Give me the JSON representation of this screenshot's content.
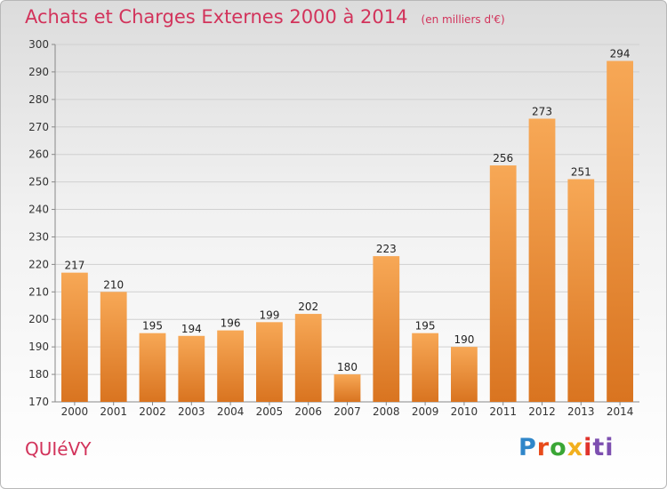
{
  "header": {
    "title": "Achats et Charges Externes 2000 à 2014",
    "subtitle": "(en milliers d'€)"
  },
  "footer": {
    "commune": "QUIéVY",
    "logo_parts": [
      "P",
      "r",
      "o",
      "x",
      "i",
      "ti"
    ]
  },
  "colors": {
    "title": "#d2335b",
    "bar_light": "#f7a856",
    "bar_dark": "#d97420",
    "grid": "#d0d0d0"
  },
  "chart_data": {
    "type": "bar",
    "title": "Achats et Charges Externes 2000 à 2014",
    "subtitle": "(en milliers d'€)",
    "categories": [
      "2000",
      "2001",
      "2002",
      "2003",
      "2004",
      "2005",
      "2006",
      "2007",
      "2008",
      "2009",
      "2010",
      "2011",
      "2012",
      "2013",
      "2014"
    ],
    "values": [
      217,
      210,
      195,
      194,
      196,
      199,
      202,
      180,
      223,
      195,
      190,
      256,
      273,
      251,
      294
    ],
    "ylim": [
      170,
      300
    ],
    "yticks": [
      170,
      180,
      190,
      200,
      210,
      220,
      230,
      240,
      250,
      260,
      270,
      280,
      290,
      300
    ],
    "grid": true,
    "data_labels": true
  }
}
